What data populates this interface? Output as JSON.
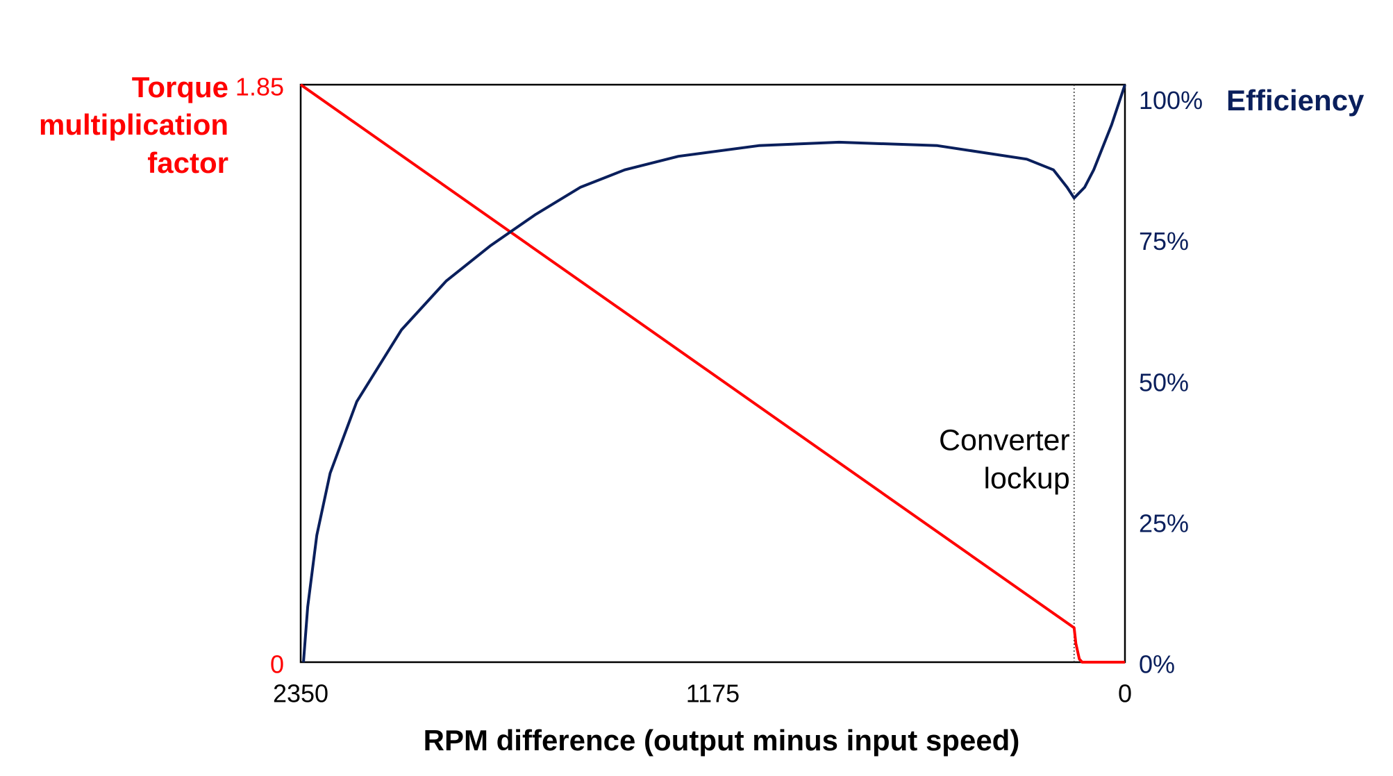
{
  "chart_data": {
    "type": "line",
    "y_label_lines": [
      "Torque",
      "multiplication",
      "factor"
    ],
    "y2_label": "Efficiency",
    "x_label": "RPM difference (output minus input speed)",
    "xlim": [
      2350,
      0
    ],
    "xticks": [
      2350,
      1175,
      0
    ],
    "ylim": [
      0,
      1.85
    ],
    "yticks": [
      0,
      1.85
    ],
    "y2lim": [
      0,
      102.4
    ],
    "y2ticks": [
      {
        "value": 0,
        "label": "0%"
      },
      {
        "value": 25,
        "label": "25%"
      },
      {
        "value": 50,
        "label": "50%"
      },
      {
        "value": 75,
        "label": "75%"
      },
      {
        "value": 100,
        "label": "100%"
      }
    ],
    "grid": false,
    "annotation": {
      "lines": [
        "Converter",
        "lockup"
      ],
      "x": 145
    },
    "series": [
      {
        "name": "Torque multiplication factor",
        "color": "#ff0000",
        "axis": "y",
        "x": [
          2350,
          145,
          140,
          130,
          122,
          0
        ],
        "values": [
          1.85,
          0.11,
          0.06,
          0.01,
          0,
          0
        ]
      },
      {
        "name": "Efficiency",
        "color": "#0a1f5c",
        "axis": "y2",
        "x": [
          2342,
          2330,
          2304,
          2266,
          2190,
          2063,
          1935,
          1808,
          1680,
          1553,
          1426,
          1273,
          1044,
          815,
          535,
          280,
          204,
          165,
          145,
          115,
          89,
          38,
          0
        ],
        "values": [
          0,
          9.8,
          22.5,
          33.5,
          46.2,
          58.9,
          67.6,
          73.9,
          79.4,
          84.2,
          87.3,
          89.7,
          91.6,
          92.2,
          91.6,
          89.2,
          87.3,
          84.2,
          82.3,
          84.2,
          87.3,
          95.3,
          102.4
        ]
      }
    ]
  }
}
